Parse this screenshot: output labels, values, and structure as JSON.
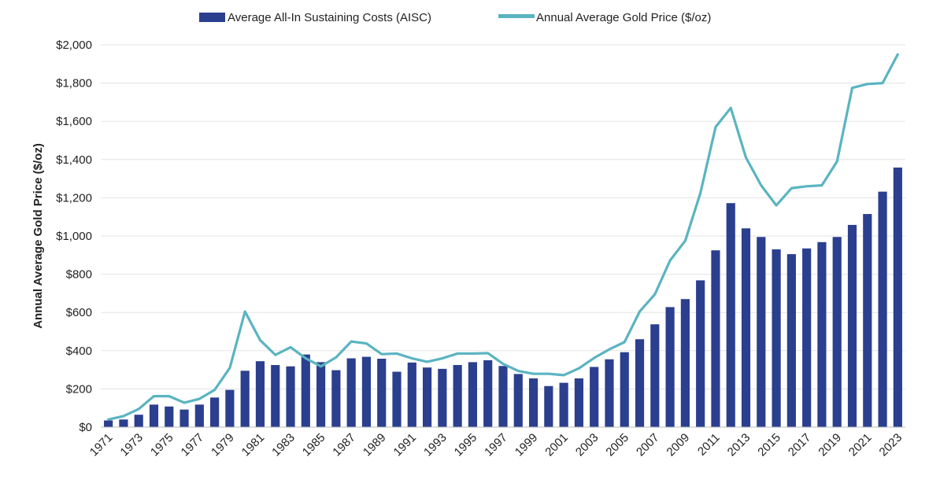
{
  "chart_data": {
    "type": "bar+line",
    "x": [
      1971,
      1972,
      1973,
      1974,
      1975,
      1976,
      1977,
      1978,
      1979,
      1980,
      1981,
      1982,
      1983,
      1984,
      1985,
      1986,
      1987,
      1988,
      1989,
      1990,
      1991,
      1992,
      1993,
      1994,
      1995,
      1996,
      1997,
      1998,
      1999,
      2000,
      2001,
      2002,
      2003,
      2004,
      2005,
      2006,
      2007,
      2008,
      2009,
      2010,
      2011,
      2012,
      2013,
      2014,
      2015,
      2016,
      2017,
      2018,
      2019,
      2020,
      2021,
      2022,
      2023
    ],
    "x_tick_labels": [
      "1971",
      "1973",
      "1975",
      "1977",
      "1979",
      "1981",
      "1983",
      "1985",
      "1987",
      "1989",
      "1991",
      "1993",
      "1995",
      "1997",
      "1999",
      "2001",
      "2003",
      "2005",
      "2007",
      "2009",
      "2011",
      "2013",
      "2015",
      "2017",
      "2019",
      "2021",
      "2023"
    ],
    "series": [
      {
        "name": "Average All-In Sustaining Costs (AISC)",
        "kind": "bar",
        "color": "#2b3f8f",
        "values": [
          35,
          40,
          65,
          118,
          108,
          92,
          118,
          155,
          195,
          295,
          345,
          325,
          318,
          380,
          340,
          298,
          360,
          368,
          358,
          290,
          338,
          312,
          305,
          325,
          340,
          350,
          320,
          278,
          255,
          215,
          232,
          255,
          315,
          355,
          392,
          460,
          538,
          628,
          670,
          768,
          925,
          1172,
          1040,
          995,
          930,
          905,
          935,
          968,
          995,
          1058,
          1115,
          1232,
          1358
        ]
      },
      {
        "name": "Annual Average Gold Price ($/oz)",
        "kind": "line",
        "color": "#5ab4c1",
        "values": [
          40,
          58,
          95,
          162,
          162,
          128,
          148,
          195,
          310,
          605,
          455,
          378,
          418,
          360,
          318,
          365,
          448,
          438,
          382,
          385,
          360,
          342,
          360,
          385,
          385,
          387,
          331,
          294,
          279,
          279,
          272,
          308,
          362,
          407,
          445,
          605,
          695,
          872,
          975,
          1225,
          1570,
          1670,
          1410,
          1265,
          1160,
          1250,
          1260,
          1265,
          1390,
          1775,
          1795,
          1800,
          1950
        ]
      }
    ],
    "y_tick_labels": [
      "$0",
      "$200",
      "$400",
      "$600",
      "$800",
      "$1,000",
      "$1,200",
      "$1,400",
      "$1,600",
      "$1,800",
      "$2,000"
    ],
    "ylim": [
      0,
      2000
    ],
    "ylabel": "Annual Average Gold Price ($/oz)",
    "xlabel": "",
    "grid": "horizontal",
    "legend_position": "top-center"
  }
}
